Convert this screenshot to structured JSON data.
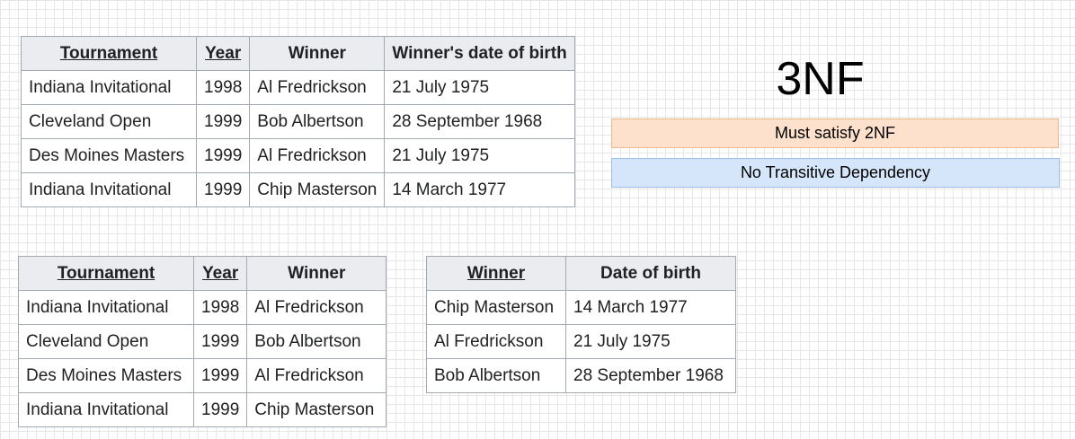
{
  "title": "3NF",
  "rules": [
    {
      "label": "Must satisfy 2NF",
      "color": "#fde1cc"
    },
    {
      "label": "No Transitive Dependency",
      "color": "#d6e6fa"
    }
  ],
  "original_table": {
    "headers": [
      "Tournament",
      "Year",
      "Winner",
      "Winner's date of birth"
    ],
    "rows": [
      [
        "Indiana Invitational",
        "1998",
        "Al Fredrickson",
        "21 July 1975"
      ],
      [
        "Cleveland Open",
        "1999",
        "Bob Albertson",
        "28 September 1968"
      ],
      [
        "Des Moines Masters",
        "1999",
        "Al Fredrickson",
        "21 July 1975"
      ],
      [
        "Indiana Invitational",
        "1999",
        "Chip Masterson",
        "14 March 1977"
      ]
    ]
  },
  "tournament_table": {
    "headers": [
      "Tournament",
      "Year",
      "Winner"
    ],
    "rows": [
      [
        "Indiana Invitational",
        "1998",
        "Al Fredrickson"
      ],
      [
        "Cleveland Open",
        "1999",
        "Bob Albertson"
      ],
      [
        "Des Moines Masters",
        "1999",
        "Al Fredrickson"
      ],
      [
        "Indiana Invitational",
        "1999",
        "Chip Masterson"
      ]
    ]
  },
  "winner_table": {
    "headers": [
      "Winner",
      "Date of birth"
    ],
    "rows": [
      [
        "Chip Masterson",
        "14 March 1977"
      ],
      [
        "Al Fredrickson",
        "21 July 1975"
      ],
      [
        "Bob Albertson",
        "28 September 1968"
      ]
    ]
  }
}
